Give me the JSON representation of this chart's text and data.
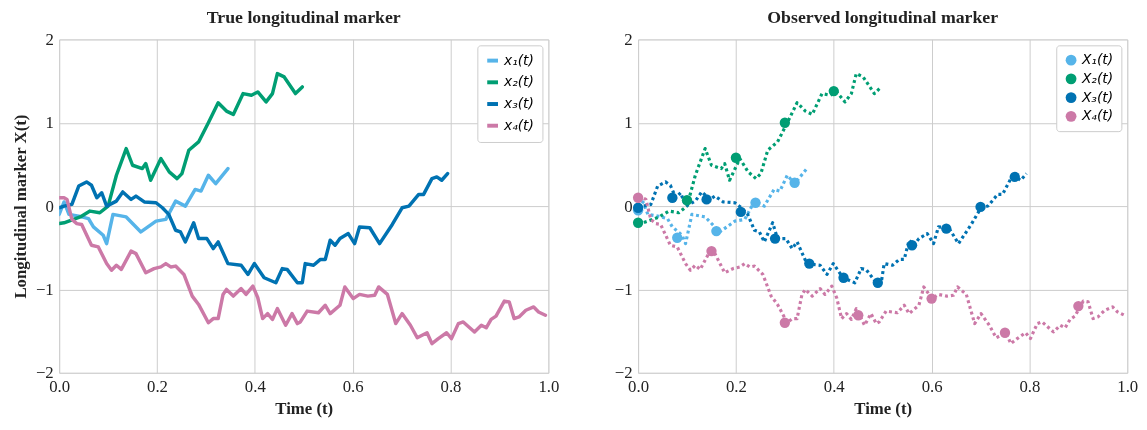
{
  "chart_data": [
    {
      "type": "line",
      "title": "True longitudinal marker",
      "xlabel": "Time (t)",
      "ylabel": "Longitudinal marker X(t)",
      "xlim": [
        0,
        1
      ],
      "ylim": [
        -2,
        2
      ],
      "xticks": [
        {
          "value": 0,
          "label": "0.0"
        },
        {
          "value": 0.2,
          "label": "0.2"
        },
        {
          "value": 0.4,
          "label": "0.4"
        },
        {
          "value": 0.6,
          "label": "0.6"
        },
        {
          "value": 0.8,
          "label": "0.8"
        },
        {
          "value": 1,
          "label": "1.0"
        }
      ],
      "yticks": [
        -2,
        -1,
        0,
        1,
        2
      ],
      "grid": true,
      "legend": "top right",
      "line_style": "solid",
      "series": [
        {
          "name": "x₁(t)",
          "color": "#56b4e9",
          "x": [
            0,
            0.01,
            0.02,
            0.04,
            0.06,
            0.07,
            0.09,
            0.097,
            0.11,
            0.137,
            0.167,
            0.198,
            0.218,
            0.238,
            0.258,
            0.278,
            0.29,
            0.305,
            0.32,
            0.345
          ],
          "values": [
            -0.1,
            0.05,
            -0.1,
            -0.12,
            -0.15,
            -0.25,
            -0.35,
            -0.45,
            -0.1,
            -0.13,
            -0.31,
            -0.18,
            -0.16,
            0.06,
            0,
            0.2,
            0.18,
            0.37,
            0.27,
            0.45
          ]
        },
        {
          "name": "x₂(t)",
          "color": "#009e73",
          "x": [
            0,
            0.01,
            0.043,
            0.063,
            0.083,
            0.1,
            0.117,
            0.137,
            0.15,
            0.17,
            0.177,
            0.187,
            0.208,
            0.225,
            0.241,
            0.251,
            0.265,
            0.285,
            0.305,
            0.325,
            0.342,
            0.356,
            0.376,
            0.393,
            0.406,
            0.423,
            0.436,
            0.446,
            0.46,
            0.483,
            0.497
          ],
          "values": [
            -0.21,
            -0.2,
            -0.13,
            -0.06,
            -0.08,
            0,
            0.37,
            0.69,
            0.49,
            0.45,
            0.51,
            0.31,
            0.57,
            0.41,
            0.33,
            0.39,
            0.67,
            0.77,
            1.0,
            1.24,
            1.14,
            1.1,
            1.35,
            1.33,
            1.37,
            1.25,
            1.35,
            1.59,
            1.55,
            1.35,
            1.43
          ]
        },
        {
          "name": "x₃(t)",
          "color": "#0072b2",
          "x": [
            0,
            0.01,
            0.026,
            0.04,
            0.056,
            0.066,
            0.077,
            0.087,
            0.097,
            0.117,
            0.13,
            0.147,
            0.157,
            0.174,
            0.198,
            0.211,
            0.224,
            0.238,
            0.248,
            0.258,
            0.275,
            0.285,
            0.302,
            0.315,
            0.325,
            0.345,
            0.372,
            0.386,
            0.399,
            0.419,
            0.443,
            0.456,
            0.466,
            0.487,
            0.497,
            0.503,
            0.52,
            0.534,
            0.544,
            0.554,
            0.564,
            0.574,
            0.591,
            0.604,
            0.614,
            0.635,
            0.655,
            0.681,
            0.701,
            0.715,
            0.735,
            0.745,
            0.762,
            0.772,
            0.782,
            0.794
          ],
          "values": [
            -0.02,
            0,
            0.02,
            0.24,
            0.29,
            0.25,
            0.1,
            0.16,
            0,
            0.06,
            0.17,
            0.08,
            0.12,
            0.05,
            0.04,
            -0.02,
            -0.1,
            -0.29,
            -0.31,
            -0.43,
            -0.2,
            -0.39,
            -0.39,
            -0.51,
            -0.43,
            -0.69,
            -0.71,
            -0.82,
            -0.69,
            -0.86,
            -0.92,
            -0.75,
            -0.76,
            -0.92,
            -0.92,
            -0.69,
            -0.71,
            -0.64,
            -0.64,
            -0.41,
            -0.47,
            -0.39,
            -0.33,
            -0.45,
            -0.25,
            -0.26,
            -0.45,
            -0.22,
            -0.02,
            0,
            0.14,
            0.14,
            0.33,
            0.35,
            0.31,
            0.39
          ]
        },
        {
          "name": "x₄(t)",
          "color": "#cc79a7",
          "x": [
            0,
            0.01,
            0.016,
            0.026,
            0.036,
            0.046,
            0.066,
            0.08,
            0.097,
            0.107,
            0.117,
            0.127,
            0.147,
            0.157,
            0.177,
            0.194,
            0.208,
            0.218,
            0.228,
            0.238,
            0.255,
            0.272,
            0.285,
            0.305,
            0.315,
            0.325,
            0.335,
            0.342,
            0.356,
            0.372,
            0.382,
            0.396,
            0.406,
            0.416,
            0.426,
            0.436,
            0.446,
            0.463,
            0.476,
            0.487,
            0.493,
            0.507,
            0.53,
            0.544,
            0.554,
            0.574,
            0.584,
            0.601,
            0.614,
            0.631,
            0.645,
            0.653,
            0.671,
            0.688,
            0.701,
            0.718,
            0.732,
            0.752,
            0.762,
            0.775,
            0.792,
            0.802,
            0.816,
            0.826,
            0.849,
            0.863,
            0.873,
            0.883,
            0.893,
            0.91,
            0.92,
            0.93,
            0.94,
            0.954,
            0.97,
            0.98,
            0.994
          ],
          "values": [
            0.1,
            0.1,
            0.08,
            -0.16,
            -0.21,
            -0.22,
            -0.47,
            -0.49,
            -0.69,
            -0.77,
            -0.71,
            -0.76,
            -0.54,
            -0.57,
            -0.8,
            -0.75,
            -0.73,
            -0.69,
            -0.73,
            -0.72,
            -0.82,
            -1.08,
            -1.18,
            -1.4,
            -1.35,
            -1.35,
            -1.06,
            -1.0,
            -1.08,
            -0.99,
            -1.06,
            -0.96,
            -1.1,
            -1.35,
            -1.29,
            -1.36,
            -1.23,
            -1.43,
            -1.29,
            -1.41,
            -1.39,
            -1.26,
            -1.28,
            -1.19,
            -1.29,
            -1.19,
            -0.97,
            -1.11,
            -1.06,
            -1.08,
            -1.07,
            -0.97,
            -1.06,
            -1.41,
            -1.29,
            -1.43,
            -1.58,
            -1.52,
            -1.65,
            -1.59,
            -1.52,
            -1.59,
            -1.41,
            -1.39,
            -1.51,
            -1.43,
            -1.46,
            -1.36,
            -1.32,
            -1.14,
            -1.15,
            -1.35,
            -1.33,
            -1.25,
            -1.21,
            -1.27,
            -1.31
          ]
        }
      ]
    },
    {
      "type": "scatter",
      "title": "Observed longitudinal marker",
      "xlabel": "Time (t)",
      "xlim": [
        0,
        1
      ],
      "ylim": [
        -2,
        2
      ],
      "xticks": [
        {
          "value": 0,
          "label": "0.0"
        },
        {
          "value": 0.2,
          "label": "0.2"
        },
        {
          "value": 0.4,
          "label": "0.4"
        },
        {
          "value": 0.6,
          "label": "0.6"
        },
        {
          "value": 0.8,
          "label": "0.8"
        },
        {
          "value": 1,
          "label": "1.0"
        }
      ],
      "yticks": [
        -2,
        -1,
        0,
        1,
        2
      ],
      "grid": true,
      "legend": "top right",
      "marker": "circle",
      "series": [
        {
          "name": "X₁(t)",
          "color": "#56b4e9",
          "x": [
            0,
            0.08,
            0.16,
            0.24,
            0.32
          ],
          "values": [
            -0.05,
            -0.38,
            -0.3,
            0.04,
            0.28
          ]
        },
        {
          "name": "X₂(t)",
          "color": "#009e73",
          "x": [
            0,
            0.1,
            0.2,
            0.3,
            0.4
          ],
          "values": [
            -0.2,
            0.07,
            0.58,
            1.0,
            1.38
          ]
        },
        {
          "name": "X₃(t)",
          "color": "#0072b2",
          "x": [
            0,
            0.07,
            0.14,
            0.21,
            0.28,
            0.35,
            0.42,
            0.49,
            0.56,
            0.63,
            0.7,
            0.77
          ],
          "values": [
            -0.02,
            0.1,
            0.08,
            -0.07,
            -0.39,
            -0.69,
            -0.86,
            -0.92,
            -0.47,
            -0.27,
            -0.01,
            0.35
          ]
        },
        {
          "name": "X₄(t)",
          "color": "#cc79a7",
          "x": [
            0,
            0.15,
            0.3,
            0.45,
            0.6,
            0.75,
            0.9
          ],
          "values": [
            0.1,
            -0.54,
            -1.4,
            -1.31,
            -1.11,
            -1.52,
            -1.2
          ]
        },
        {
          "type": "line",
          "line_style": "dotted",
          "marker": "none",
          "color": "#56b4e9",
          "x": [
            0,
            0.01,
            0.02,
            0.04,
            0.06,
            0.07,
            0.09,
            0.097,
            0.11,
            0.137,
            0.167,
            0.198,
            0.218,
            0.238,
            0.258,
            0.278,
            0.29,
            0.305,
            0.32,
            0.345
          ],
          "values": [
            -0.1,
            0.05,
            -0.1,
            -0.12,
            -0.15,
            -0.25,
            -0.35,
            -0.45,
            -0.1,
            -0.13,
            -0.31,
            -0.18,
            -0.16,
            0.06,
            0,
            0.2,
            0.18,
            0.37,
            0.27,
            0.45
          ]
        },
        {
          "type": "line",
          "line_style": "dotted",
          "marker": "none",
          "color": "#009e73",
          "x": [
            0,
            0.01,
            0.043,
            0.063,
            0.083,
            0.1,
            0.117,
            0.137,
            0.15,
            0.17,
            0.177,
            0.187,
            0.208,
            0.225,
            0.241,
            0.251,
            0.265,
            0.285,
            0.305,
            0.325,
            0.342,
            0.356,
            0.376,
            0.393,
            0.406,
            0.423,
            0.436,
            0.446,
            0.46,
            0.483,
            0.497
          ],
          "values": [
            -0.21,
            -0.2,
            -0.13,
            -0.06,
            -0.08,
            0,
            0.37,
            0.69,
            0.49,
            0.45,
            0.51,
            0.31,
            0.57,
            0.41,
            0.33,
            0.39,
            0.67,
            0.77,
            1.0,
            1.24,
            1.14,
            1.1,
            1.35,
            1.33,
            1.37,
            1.25,
            1.35,
            1.59,
            1.55,
            1.35,
            1.43
          ]
        },
        {
          "type": "line",
          "line_style": "dotted",
          "marker": "none",
          "color": "#0072b2",
          "x": [
            0,
            0.01,
            0.026,
            0.04,
            0.056,
            0.066,
            0.077,
            0.087,
            0.097,
            0.117,
            0.13,
            0.147,
            0.157,
            0.174,
            0.198,
            0.211,
            0.224,
            0.238,
            0.248,
            0.258,
            0.275,
            0.285,
            0.302,
            0.315,
            0.325,
            0.345,
            0.372,
            0.386,
            0.399,
            0.419,
            0.443,
            0.456,
            0.466,
            0.487,
            0.497,
            0.503,
            0.52,
            0.534,
            0.544,
            0.554,
            0.564,
            0.574,
            0.591,
            0.604,
            0.614,
            0.635,
            0.655,
            0.681,
            0.701,
            0.715,
            0.735,
            0.745,
            0.762,
            0.772,
            0.782,
            0.794
          ],
          "values": [
            -0.02,
            0,
            0.02,
            0.24,
            0.29,
            0.25,
            0.1,
            0.16,
            0,
            0.06,
            0.17,
            0.08,
            0.12,
            0.05,
            0.04,
            -0.02,
            -0.1,
            -0.29,
            -0.31,
            -0.43,
            -0.2,
            -0.39,
            -0.39,
            -0.51,
            -0.43,
            -0.69,
            -0.71,
            -0.82,
            -0.69,
            -0.86,
            -0.92,
            -0.75,
            -0.76,
            -0.92,
            -0.92,
            -0.69,
            -0.71,
            -0.64,
            -0.64,
            -0.41,
            -0.47,
            -0.39,
            -0.33,
            -0.45,
            -0.25,
            -0.26,
            -0.45,
            -0.22,
            -0.02,
            0,
            0.14,
            0.14,
            0.33,
            0.35,
            0.31,
            0.39
          ]
        },
        {
          "type": "line",
          "line_style": "dotted",
          "marker": "none",
          "color": "#cc79a7",
          "x": [
            0,
            0.01,
            0.016,
            0.026,
            0.036,
            0.046,
            0.066,
            0.08,
            0.097,
            0.107,
            0.117,
            0.127,
            0.147,
            0.157,
            0.177,
            0.194,
            0.208,
            0.218,
            0.228,
            0.238,
            0.255,
            0.272,
            0.285,
            0.305,
            0.315,
            0.325,
            0.335,
            0.342,
            0.356,
            0.372,
            0.382,
            0.396,
            0.406,
            0.416,
            0.426,
            0.436,
            0.446,
            0.463,
            0.476,
            0.487,
            0.493,
            0.507,
            0.53,
            0.544,
            0.554,
            0.574,
            0.584,
            0.601,
            0.614,
            0.631,
            0.645,
            0.653,
            0.671,
            0.688,
            0.701,
            0.718,
            0.732,
            0.752,
            0.762,
            0.775,
            0.792,
            0.802,
            0.816,
            0.826,
            0.849,
            0.863,
            0.873,
            0.883,
            0.893,
            0.91,
            0.92,
            0.93,
            0.94,
            0.954,
            0.97,
            0.98,
            0.994
          ],
          "values": [
            0.1,
            0.1,
            0.08,
            -0.16,
            -0.21,
            -0.22,
            -0.47,
            -0.49,
            -0.69,
            -0.77,
            -0.71,
            -0.76,
            -0.54,
            -0.57,
            -0.8,
            -0.75,
            -0.73,
            -0.69,
            -0.73,
            -0.72,
            -0.82,
            -1.08,
            -1.18,
            -1.4,
            -1.35,
            -1.35,
            -1.06,
            -1.0,
            -1.08,
            -0.99,
            -1.06,
            -0.96,
            -1.1,
            -1.35,
            -1.29,
            -1.36,
            -1.23,
            -1.43,
            -1.29,
            -1.41,
            -1.39,
            -1.26,
            -1.28,
            -1.19,
            -1.29,
            -1.19,
            -0.97,
            -1.11,
            -1.06,
            -1.08,
            -1.07,
            -0.97,
            -1.06,
            -1.41,
            -1.29,
            -1.43,
            -1.58,
            -1.52,
            -1.65,
            -1.59,
            -1.52,
            -1.59,
            -1.41,
            -1.39,
            -1.51,
            -1.43,
            -1.46,
            -1.36,
            -1.32,
            -1.14,
            -1.15,
            -1.35,
            -1.33,
            -1.25,
            -1.21,
            -1.27,
            -1.31
          ]
        }
      ]
    }
  ]
}
